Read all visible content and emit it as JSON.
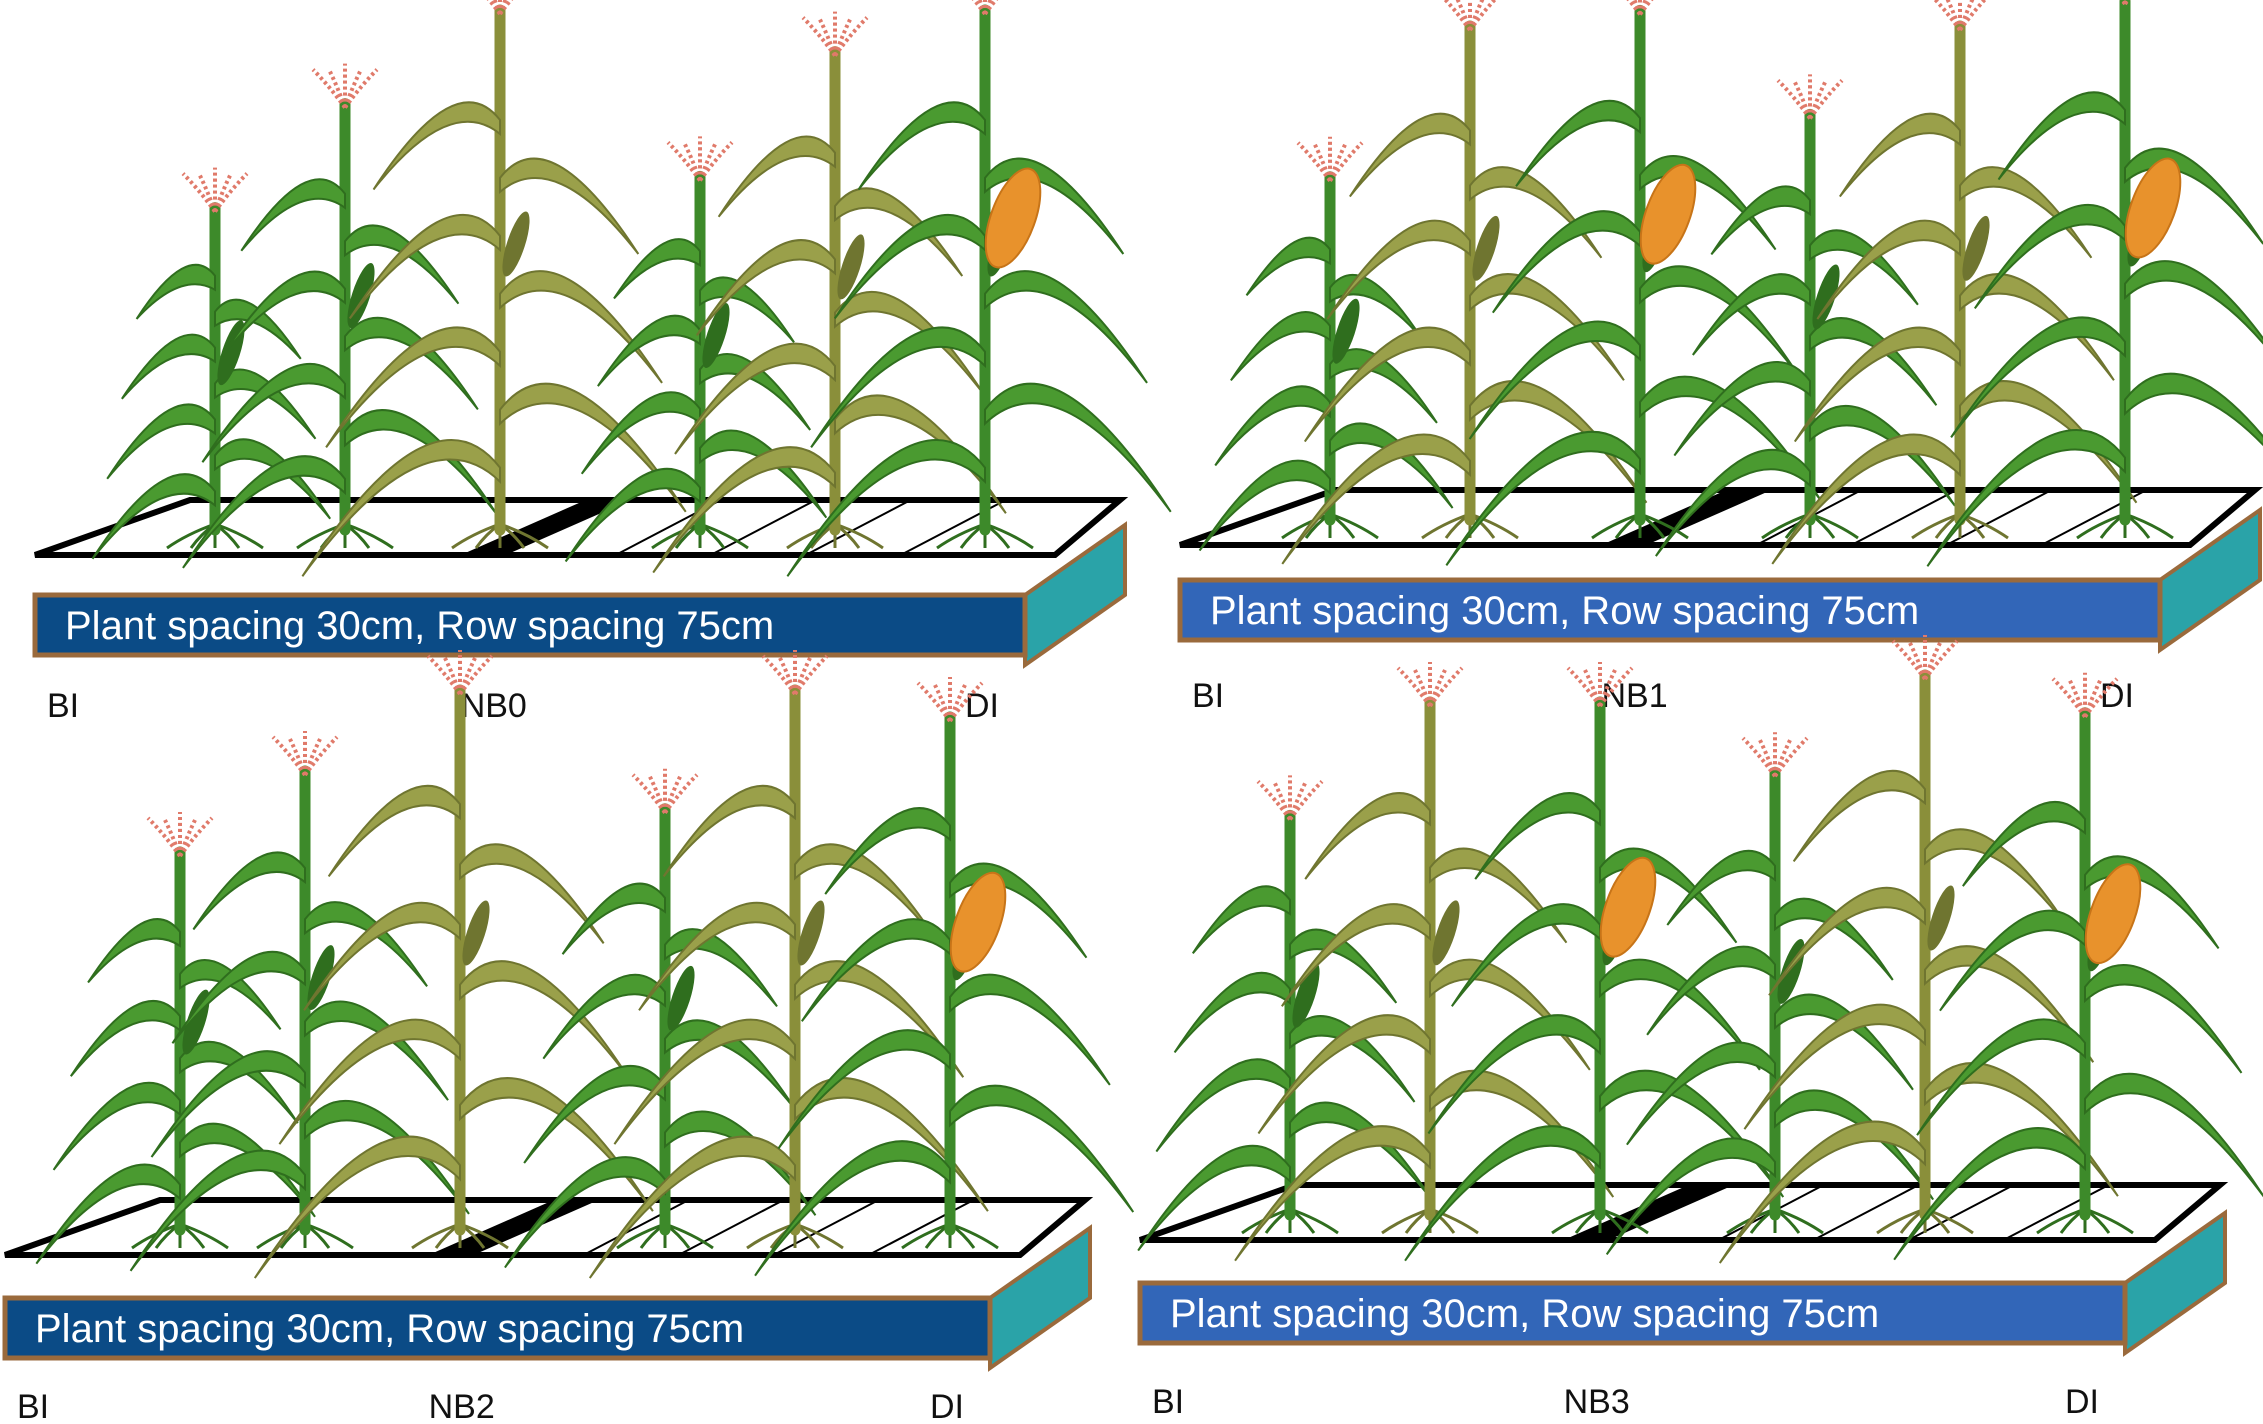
{
  "colors": {
    "banner_dark": "#0b4b86",
    "banner_light": "#3266b8",
    "banner_border": "#9a6a3c",
    "side_face": "#2aa3a8",
    "leaf_green": "#3f8f2b",
    "leaf_olive": "#8f9a3e",
    "tassel": "#e07a6a",
    "cob": "#e8922c"
  },
  "panels": [
    {
      "id": "NB0",
      "banner_text": "Plant spacing  30cm, Row spacing 75cm",
      "banner_style": "dark",
      "left_label": "BI",
      "center_label": "NB0",
      "right_label": "DI",
      "plants": [
        {
          "height": 0.62,
          "type": "green",
          "cob": false
        },
        {
          "height": 0.82,
          "type": "green",
          "cob": false
        },
        {
          "height": 1.0,
          "type": "olive",
          "cob": false
        },
        {
          "height": 0.68,
          "type": "green",
          "cob": false
        },
        {
          "height": 0.92,
          "type": "olive",
          "cob": false
        },
        {
          "height": 1.0,
          "type": "green",
          "cob": true
        }
      ]
    },
    {
      "id": "NB1",
      "banner_text": "Plant spacing  30cm, Row spacing 75cm",
      "banner_style": "light",
      "left_label": "BI",
      "center_label": "NB1",
      "right_label": "DI",
      "plants": [
        {
          "height": 0.66,
          "type": "green",
          "cob": false
        },
        {
          "height": 0.95,
          "type": "olive",
          "cob": false
        },
        {
          "height": 0.98,
          "type": "green",
          "cob": true
        },
        {
          "height": 0.78,
          "type": "green",
          "cob": false
        },
        {
          "height": 0.95,
          "type": "olive",
          "cob": false
        },
        {
          "height": 1.0,
          "type": "green",
          "cob": true
        }
      ]
    },
    {
      "id": "NB2",
      "banner_text": "Plant spacing  30cm, Row spacing 75cm",
      "banner_style": "dark",
      "left_label": "BI",
      "center_label": "NB2",
      "right_label": "DI",
      "plants": [
        {
          "height": 0.7,
          "type": "green",
          "cob": false
        },
        {
          "height": 0.85,
          "type": "green",
          "cob": false
        },
        {
          "height": 1.0,
          "type": "olive",
          "cob": false
        },
        {
          "height": 0.78,
          "type": "green",
          "cob": false
        },
        {
          "height": 1.0,
          "type": "olive",
          "cob": false
        },
        {
          "height": 0.95,
          "type": "green",
          "cob": true
        }
      ]
    },
    {
      "id": "NB3",
      "banner_text": "Plant spacing  30cm, Row spacing 75cm",
      "banner_style": "light",
      "left_label": "BI",
      "center_label": "NB3",
      "right_label": "DI",
      "plants": [
        {
          "height": 0.74,
          "type": "green",
          "cob": false
        },
        {
          "height": 0.95,
          "type": "olive",
          "cob": false
        },
        {
          "height": 0.95,
          "type": "green",
          "cob": true
        },
        {
          "height": 0.82,
          "type": "green",
          "cob": false
        },
        {
          "height": 1.0,
          "type": "olive",
          "cob": false
        },
        {
          "height": 0.93,
          "type": "green",
          "cob": true
        }
      ]
    }
  ]
}
